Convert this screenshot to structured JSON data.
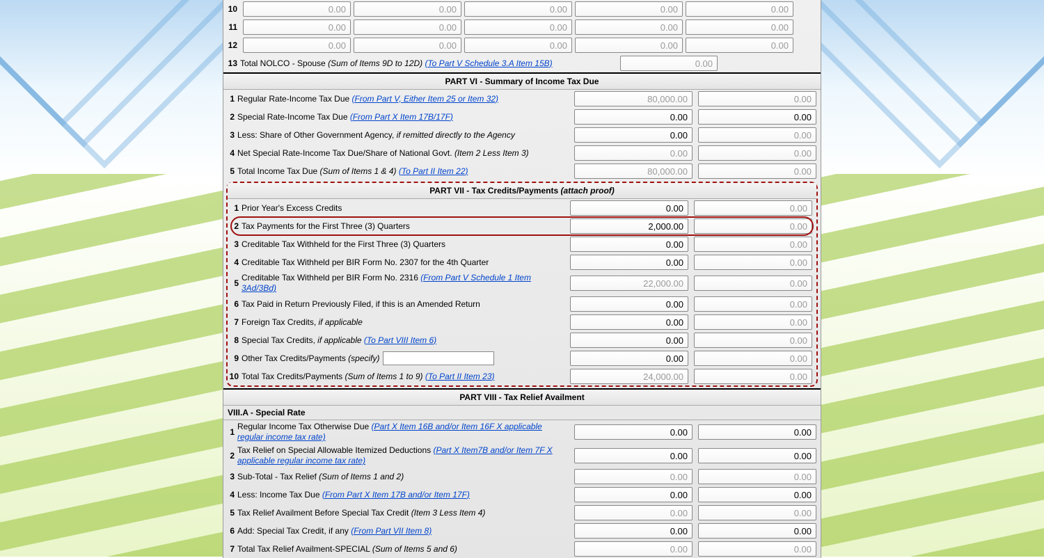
{
  "colors": {
    "highlight_border": "#a01010",
    "disabled_text": "#9a9a9a",
    "link": "#0044cc"
  },
  "top": {
    "items": [
      {
        "num": "10",
        "v1": "0.00",
        "v2": "0.00",
        "v3": "0.00",
        "v4": "0.00",
        "v5": "0.00"
      },
      {
        "num": "11",
        "v1": "0.00",
        "v2": "0.00",
        "v3": "0.00",
        "v4": "0.00",
        "v5": "0.00"
      },
      {
        "num": "12",
        "v1": "0.00",
        "v2": "0.00",
        "v3": "0.00",
        "v4": "0.00",
        "v5": "0.00"
      }
    ],
    "nolco": {
      "num": "13",
      "label": "Total NOLCO - Spouse ",
      "italic": "(Sum of Items 9D to 12D) ",
      "link": "(To Part V Schedule 3.A Item 15B)",
      "value": "0.00"
    }
  },
  "part6": {
    "header": "PART VI - Summary of Income Tax Due",
    "rows": [
      {
        "num": "1",
        "text": "Regular Rate-Income Tax Due ",
        "link": "(From Part V, Either Item 25 or Item 32)",
        "a": "80,000.00",
        "a_dis": true,
        "b": "0.00",
        "b_dis": true
      },
      {
        "num": "2",
        "text": "Special Rate-Income Tax Due ",
        "link": "(From Part X Item 17B/17F)",
        "a": "0.00",
        "a_dis": false,
        "b": "0.00",
        "b_dis": false
      },
      {
        "num": "3",
        "text": "Less: Share of Other Government Agency, ",
        "italic": "if remitted directly to the Agency",
        "a": "0.00",
        "a_dis": false,
        "b": "0.00",
        "b_dis": true
      },
      {
        "num": "4",
        "text": "Net Special Rate-Income Tax Due/Share of National Govt. ",
        "italic": "(Item 2 Less Item 3)",
        "a": "0.00",
        "a_dis": true,
        "b": "0.00",
        "b_dis": true
      },
      {
        "num": "5",
        "text": "Total Income Tax Due ",
        "italic": "(Sum of Items 1 & 4) ",
        "link": "(To Part II Item 22)",
        "a": "80,000.00",
        "a_dis": true,
        "b": "0.00",
        "b_dis": true
      }
    ]
  },
  "part7": {
    "header": "PART VII - Tax Credits/Payments ",
    "header_italic": "(attach proof)",
    "rows": [
      {
        "num": "1",
        "text": "Prior Year's Excess Credits",
        "a": "0.00",
        "a_dis": false,
        "b": "0.00",
        "b_dis": true
      },
      {
        "num": "2",
        "text": "Tax Payments for the First Three (3) Quarters",
        "a": "2,000.00",
        "a_dis": false,
        "b": "0.00",
        "b_dis": true,
        "highlight": true
      },
      {
        "num": "3",
        "text": "Creditable Tax Withheld for the First Three (3) Quarters",
        "a": "0.00",
        "a_dis": false,
        "b": "0.00",
        "b_dis": true
      },
      {
        "num": "4",
        "text": "Creditable Tax Withheld per BIR Form No. 2307 for the 4th Quarter",
        "a": "0.00",
        "a_dis": false,
        "b": "0.00",
        "b_dis": true
      },
      {
        "num": "5",
        "text": "Creditable Tax Withheld per BIR Form No. 2316 ",
        "link": "(From Part V Schedule 1 Item 3Ad/3Bd)",
        "a": "22,000.00",
        "a_dis": true,
        "b": "0.00",
        "b_dis": true
      },
      {
        "num": "6",
        "text": "Tax Paid in Return Previously Filed, if this is an Amended Return",
        "a": "0.00",
        "a_dis": false,
        "b": "0.00",
        "b_dis": true
      },
      {
        "num": "7",
        "text": "Foreign Tax Credits, ",
        "italic": "if applicable",
        "a": "0.00",
        "a_dis": false,
        "b": "0.00",
        "b_dis": true
      },
      {
        "num": "8",
        "text": "Special Tax Credits, ",
        "italic": "if applicable ",
        "link": "(To Part VIII Item 6)",
        "a": "0.00",
        "a_dis": false,
        "b": "0.00",
        "b_dis": true
      },
      {
        "num": "9",
        "text": "Other Tax Credits/Payments ",
        "italic": "(specify)",
        "has_input": true,
        "input_val": "",
        "a": "0.00",
        "a_dis": false,
        "b": "0.00",
        "b_dis": true
      },
      {
        "num": "10",
        "text": "Total Tax Credits/Payments ",
        "italic": "(Sum of Items 1 to 9) ",
        "link": "(To Part II Item 23)",
        "a": "24,000.00",
        "a_dis": true,
        "b": "0.00",
        "b_dis": true
      }
    ]
  },
  "part8": {
    "header": "PART VIII - Tax Relief Availment",
    "subheader": "VIII.A - Special Rate",
    "rows": [
      {
        "num": "1",
        "text": "Regular Income Tax Otherwise Due ",
        "link": "(Part X Item 16B and/or Item 16F X applicable regular income tax rate)",
        "a": "0.00",
        "a_dis": false,
        "b": "0.00",
        "b_dis": false
      },
      {
        "num": "2",
        "text": "Tax Relief on Special Allowable Itemized Deductions ",
        "link": "(Part X Item7B and/or Item 7F X applicable regular income tax rate)",
        "a": "0.00",
        "a_dis": false,
        "b": "0.00",
        "b_dis": false
      },
      {
        "num": "3",
        "text": "Sub-Total - Tax Relief ",
        "italic": "(Sum of Items 1 and 2)",
        "a": "0.00",
        "a_dis": true,
        "b": "0.00",
        "b_dis": true
      },
      {
        "num": "4",
        "text": "Less: Income Tax Due ",
        "link": "(From Part X Item 17B and/or Item 17F)",
        "a": "0.00",
        "a_dis": false,
        "b": "0.00",
        "b_dis": false
      },
      {
        "num": "5",
        "text": "Tax Relief Availment Before Special Tax Credit ",
        "italic": "(Item 3 Less Item 4)",
        "a": "0.00",
        "a_dis": true,
        "b": "0.00",
        "b_dis": true
      },
      {
        "num": "6",
        "text": "Add: Special Tax Credit, if any ",
        "link": "(From Part VII Item 8)",
        "a": "0.00",
        "a_dis": false,
        "b": "0.00",
        "b_dis": false
      },
      {
        "num": "7",
        "text": "Total Tax Relief Availment-SPECIAL ",
        "italic": "(Sum of Items 5 and 6)",
        "a": "0.00",
        "a_dis": true,
        "b": "0.00",
        "b_dis": true
      }
    ]
  }
}
